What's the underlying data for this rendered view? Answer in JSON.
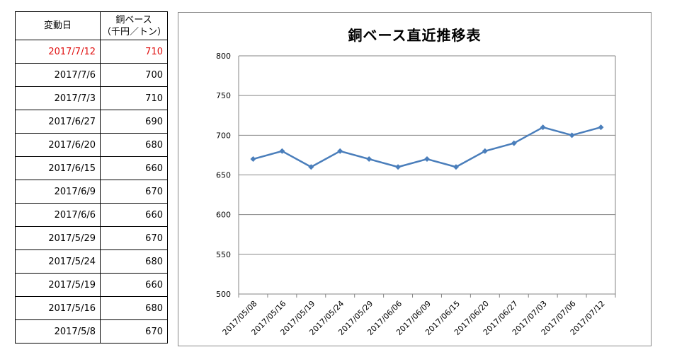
{
  "table": {
    "header": {
      "date": "変動日",
      "value_line1": "銅ベース",
      "value_line2": "（千円／トン）"
    },
    "rows": [
      {
        "date": "2017/7/12",
        "value": "710"
      },
      {
        "date": "2017/7/6",
        "value": "700"
      },
      {
        "date": "2017/7/3",
        "value": "710"
      },
      {
        "date": "2017/6/27",
        "value": "690"
      },
      {
        "date": "2017/6/20",
        "value": "680"
      },
      {
        "date": "2017/6/15",
        "value": "660"
      },
      {
        "date": "2017/6/9",
        "value": "670"
      },
      {
        "date": "2017/6/6",
        "value": "660"
      },
      {
        "date": "2017/5/29",
        "value": "670"
      },
      {
        "date": "2017/5/24",
        "value": "680"
      },
      {
        "date": "2017/5/19",
        "value": "660"
      },
      {
        "date": "2017/5/16",
        "value": "680"
      },
      {
        "date": "2017/5/8",
        "value": "670"
      }
    ],
    "highlight_color": "#e01010"
  },
  "chart_data": {
    "type": "line",
    "title": "銅ベース直近推移表",
    "categories": [
      "2017/05/08",
      "2017/05/16",
      "2017/05/19",
      "2017/05/24",
      "2017/05/29",
      "2017/06/06",
      "2017/06/09",
      "2017/06/15",
      "2017/06/20",
      "2017/06/27",
      "2017/07/03",
      "2017/07/06",
      "2017/07/12"
    ],
    "series": [
      {
        "values": [
          670,
          680,
          660,
          680,
          670,
          660,
          670,
          660,
          680,
          690,
          710,
          700,
          710
        ],
        "color": "#4a7ebb"
      }
    ],
    "ylim": [
      500,
      800
    ],
    "yticks": [
      500,
      550,
      600,
      650,
      700,
      750,
      800
    ],
    "grid": true,
    "legend": "none"
  }
}
